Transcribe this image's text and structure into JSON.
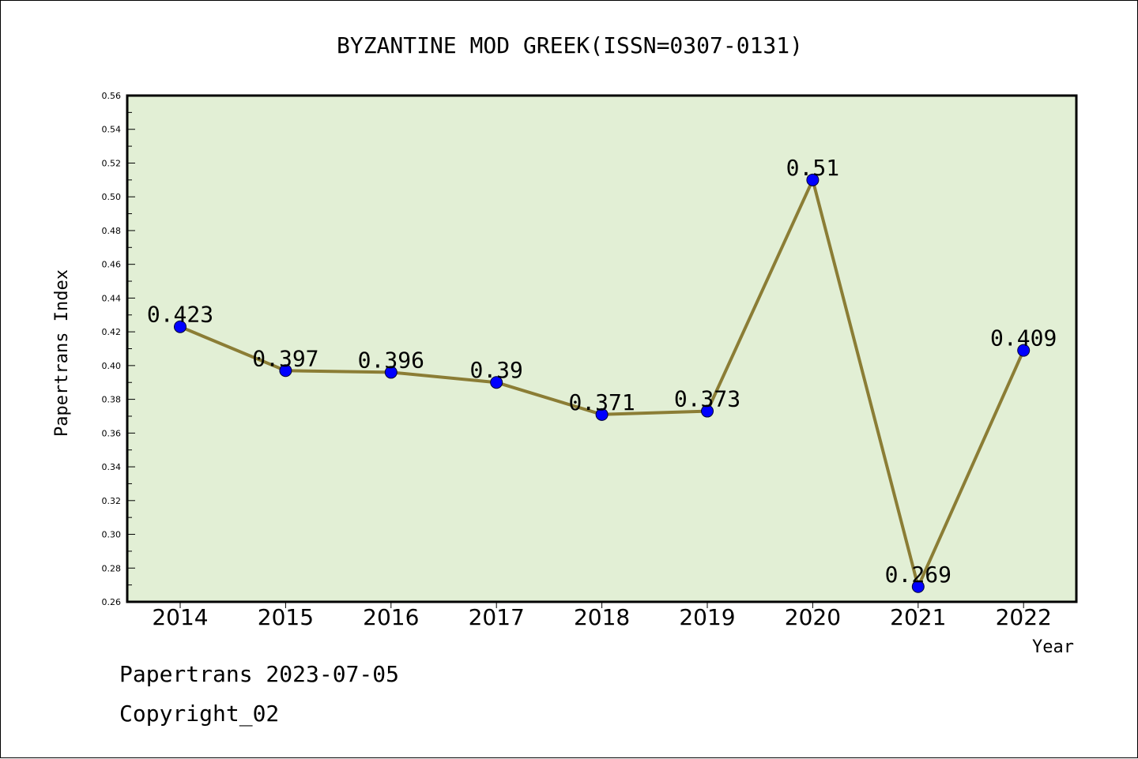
{
  "chart_data": {
    "type": "line",
    "title": "BYZANTINE MOD GREEK(ISSN=0307-0131)",
    "xlabel": "Year",
    "ylabel": "Papertrans Index",
    "categories": [
      "2014",
      "2015",
      "2016",
      "2017",
      "2018",
      "2019",
      "2020",
      "2021",
      "2022"
    ],
    "values": [
      0.423,
      0.397,
      0.396,
      0.39,
      0.371,
      0.373,
      0.51,
      0.269,
      0.409
    ],
    "data_labels": [
      "0.423",
      "0.397",
      "0.396",
      "0.39",
      "0.371",
      "0.373",
      "0.51",
      "0.269",
      "0.409"
    ],
    "ylim": [
      0.26,
      0.56
    ],
    "yticks": [
      "0.26",
      "0.28",
      "0.30",
      "0.32",
      "0.34",
      "0.36",
      "0.38",
      "0.40",
      "0.42",
      "0.44",
      "0.46",
      "0.48",
      "0.50",
      "0.52",
      "0.54",
      "0.56"
    ],
    "grid": false,
    "legend": "none",
    "colors": {
      "plot_background": "#e2efd5",
      "line": "#8b7d35",
      "marker": "#0000ff"
    }
  },
  "footer": {
    "line1": "Papertrans 2023-07-05",
    "line2": "Copyright_02"
  }
}
